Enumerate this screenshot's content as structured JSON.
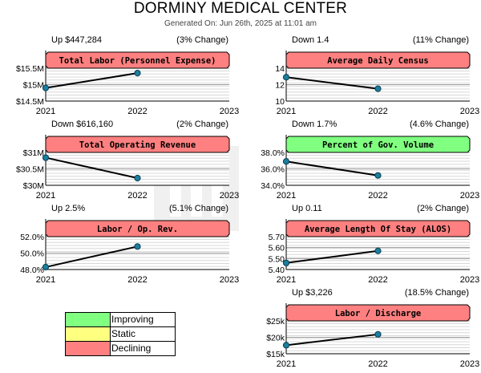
{
  "header": {
    "title": "DORMINY MEDICAL CENTER",
    "generated": "Generated On: Jun 26th, 2025 at 11:01 am"
  },
  "colors": {
    "declining": "#ff8080",
    "improving": "#80ff80",
    "static": "#ffff80",
    "line": "#000000",
    "marker": "#1a7f9f",
    "grid": "#999999"
  },
  "legend": [
    {
      "label": "Improving",
      "color": "#80ff80"
    },
    {
      "label": "Static",
      "color": "#ffff80"
    },
    {
      "label": "Declining",
      "color": "#ff8080"
    }
  ],
  "chart_data": [
    {
      "type": "line",
      "title": "Total Labor (Personnel Expense)",
      "status": "declining",
      "summary": "Up $447,284",
      "change": "(3% Change)",
      "categories": [
        "2021",
        "2022",
        "2023"
      ],
      "values": [
        14.9,
        15.35,
        null
      ],
      "ylim": [
        14.5,
        15.5
      ],
      "yticks": [
        14.5,
        15,
        15.5
      ],
      "ytick_labels": [
        "$14.5M",
        "$15M",
        "$15.5M"
      ],
      "grid": true
    },
    {
      "type": "line",
      "title": "Average Daily Census",
      "status": "declining",
      "summary": "Down 1.4",
      "change": "(11% Change)",
      "categories": [
        "2021",
        "2022",
        "2023"
      ],
      "values": [
        12.9,
        11.5,
        null
      ],
      "ylim": [
        10,
        14
      ],
      "yticks": [
        10,
        12,
        14
      ],
      "ytick_labels": [
        "10",
        "12",
        "14"
      ],
      "grid": true
    },
    {
      "type": "line",
      "title": "Total Operating Revenue",
      "status": "declining",
      "summary": "Down $616,160",
      "change": "(2% Change)",
      "categories": [
        "2021",
        "2022",
        "2023"
      ],
      "values": [
        30.84,
        30.22,
        null
      ],
      "ylim": [
        30,
        31
      ],
      "yticks": [
        30,
        30.5,
        31
      ],
      "ytick_labels": [
        "$30M",
        "$30.5M",
        "$31M"
      ],
      "grid": true
    },
    {
      "type": "line",
      "title": "Percent of Gov. Volume",
      "status": "improving",
      "summary": "Down 1.7%",
      "change": "(4.6% Change)",
      "categories": [
        "2021",
        "2022",
        "2023"
      ],
      "values": [
        36.9,
        35.2,
        null
      ],
      "ylim": [
        34,
        38
      ],
      "yticks": [
        34,
        36,
        38
      ],
      "ytick_labels": [
        "34.0%",
        "36.0%",
        "38.0%"
      ],
      "grid": true
    },
    {
      "type": "line",
      "title": "Labor / Op. Rev.",
      "status": "declining",
      "summary": "Up 2.5%",
      "change": "(5.1% Change)",
      "categories": [
        "2021",
        "2022",
        "2023"
      ],
      "values": [
        48.3,
        50.8,
        null
      ],
      "ylim": [
        48,
        52
      ],
      "yticks": [
        48,
        50,
        52
      ],
      "ytick_labels": [
        "48.0%",
        "50.0%",
        "52.0%"
      ],
      "grid": true
    },
    {
      "type": "line",
      "title": "Average Length Of Stay (ALOS)",
      "status": "declining",
      "summary": "Up 0.11",
      "change": "(2% Change)",
      "categories": [
        "2021",
        "2022",
        "2023"
      ],
      "values": [
        5.46,
        5.57,
        null
      ],
      "ylim": [
        5.4,
        5.7
      ],
      "yticks": [
        5.4,
        5.5,
        5.6,
        5.7
      ],
      "ytick_labels": [
        "5.40",
        "5.50",
        "5.60",
        "5.70"
      ],
      "grid": true
    },
    {
      "type": "line",
      "title": "Labor / Discharge",
      "status": "declining",
      "summary": "Up $3,226",
      "change": "(18.5% Change)",
      "categories": [
        "2021",
        "2022",
        "2023"
      ],
      "values": [
        17.6,
        20.9,
        null
      ],
      "ylim": [
        15,
        25
      ],
      "yticks": [
        15,
        20,
        25
      ],
      "ytick_labels": [
        "$15k",
        "$20k",
        "$25k"
      ],
      "grid": true
    }
  ]
}
